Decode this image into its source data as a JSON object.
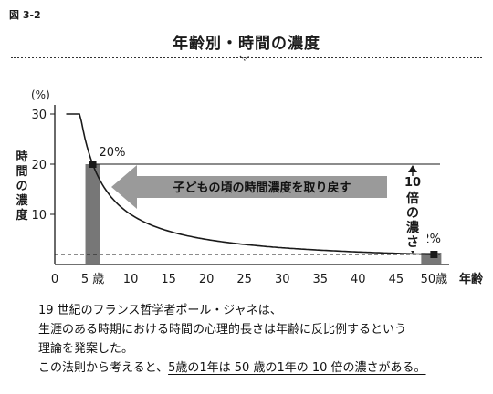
{
  "figure_label": "図 3-2",
  "title": "年齢別・時間の濃度",
  "chart_data": {
    "type": "line",
    "title": "年齢別・時間の濃度",
    "xlabel": "年齢",
    "ylabel": "時間の濃度",
    "yunit": "(%)",
    "xlim": [
      0,
      52
    ],
    "ylim": [
      0,
      30
    ],
    "xticks": [
      {
        "value": 0,
        "label": "0"
      },
      {
        "value": 5,
        "label": "5 歳"
      },
      {
        "value": 10,
        "label": "10"
      },
      {
        "value": 15,
        "label": "15"
      },
      {
        "value": 20,
        "label": "20"
      },
      {
        "value": 25,
        "label": "25"
      },
      {
        "value": 30,
        "label": "30"
      },
      {
        "value": 35,
        "label": "35"
      },
      {
        "value": 40,
        "label": "40"
      },
      {
        "value": 45,
        "label": "45"
      },
      {
        "value": 50,
        "label": "50歳"
      }
    ],
    "yticks": [
      10,
      20,
      30
    ],
    "series": [
      {
        "x": [
          1.5,
          3,
          5,
          10,
          15,
          20,
          25,
          30,
          35,
          40,
          45,
          50
        ],
        "y": [
          30,
          28,
          20,
          10,
          6.7,
          5,
          4,
          3.3,
          2.9,
          2.5,
          2.2,
          2
        ]
      }
    ],
    "highlights": [
      {
        "x": 5,
        "y": 20,
        "label": "20%"
      },
      {
        "x": 50,
        "y": 2,
        "label": "2%"
      }
    ],
    "arrow_label": "子どもの頃の時間濃度を取り戻す",
    "bracket_label": "10倍の濃さ",
    "grid": false
  },
  "body_lines": [
    "19 世紀のフランス哲学者ポール・ジャネは、",
    "生涯のある時期における時間の心理的長さは年齢に反比例するという",
    "理論を発案した。"
  ],
  "conclusion_prefix": "この法則から考えると、",
  "conclusion_emphasis": "5歳の1年は 50 歳の1年の 10 倍の濃さがある。",
  "colors": {
    "bar": "#777777",
    "arrow": "#9a9a9a",
    "ink": "#1a1a1a"
  }
}
